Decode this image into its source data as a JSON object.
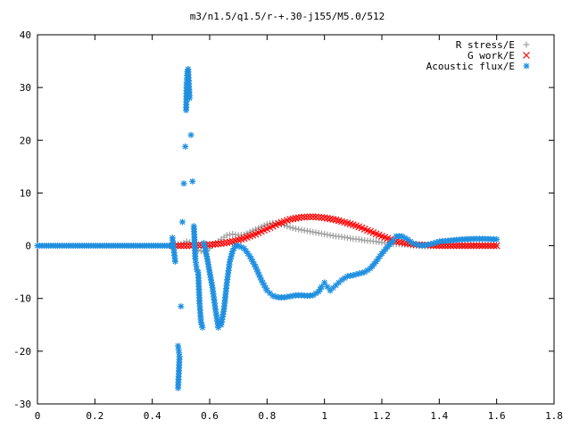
{
  "chart_data": {
    "type": "scatter",
    "title": "m3/n1.5/q1.5/r-+.30-j155/M5.0/512",
    "xlabel": "",
    "ylabel": "",
    "xlim": [
      0,
      1.8
    ],
    "ylim": [
      -30,
      40
    ],
    "xticks": [
      0,
      0.2,
      0.4,
      0.6,
      0.8,
      1,
      1.2,
      1.4,
      1.6,
      1.8
    ],
    "xtick_labels": [
      "0",
      "0.2",
      "0.4",
      "0.6",
      "0.8",
      "1",
      "1.2",
      "1.4",
      "1.6",
      "1.8"
    ],
    "yticks": [
      -30,
      -20,
      -10,
      0,
      10,
      20,
      30,
      40
    ],
    "ytick_labels": [
      "-30",
      "-20",
      "-10",
      "0",
      "10",
      "20",
      "30",
      "40"
    ],
    "grid": false,
    "legend_position": "top-right",
    "series": [
      {
        "name": "R stress/E",
        "marker": "plus",
        "color": "#a0a0a0",
        "points": [
          [
            0.47,
            0.1
          ],
          [
            0.5,
            0.3
          ],
          [
            0.52,
            0.8
          ],
          [
            0.54,
            0.5
          ],
          [
            0.56,
            -0.8
          ],
          [
            0.58,
            -1.2
          ],
          [
            0.6,
            -0.5
          ],
          [
            0.62,
            0.5
          ],
          [
            0.64,
            1.2
          ],
          [
            0.66,
            2.0
          ],
          [
            0.68,
            2.2
          ],
          [
            0.7,
            2.0
          ],
          [
            0.72,
            2.1
          ],
          [
            0.74,
            2.6
          ],
          [
            0.76,
            3.1
          ],
          [
            0.78,
            3.6
          ],
          [
            0.8,
            4.1
          ],
          [
            0.82,
            4.3
          ],
          [
            0.84,
            4.2
          ],
          [
            0.86,
            3.9
          ],
          [
            0.88,
            3.5
          ],
          [
            0.9,
            3.2
          ],
          [
            0.92,
            3.0
          ],
          [
            0.94,
            2.8
          ],
          [
            0.96,
            2.6
          ],
          [
            0.98,
            2.4
          ],
          [
            1.0,
            2.2
          ],
          [
            1.02,
            2.0
          ],
          [
            1.04,
            1.8
          ],
          [
            1.06,
            1.7
          ],
          [
            1.08,
            1.5
          ],
          [
            1.1,
            1.3
          ],
          [
            1.12,
            1.2
          ],
          [
            1.14,
            1.0
          ],
          [
            1.16,
            0.9
          ],
          [
            1.18,
            0.8
          ],
          [
            1.2,
            0.6
          ],
          [
            1.22,
            0.5
          ],
          [
            1.24,
            0.3
          ],
          [
            1.26,
            0.3
          ],
          [
            1.28,
            0.2
          ],
          [
            1.3,
            0.1
          ],
          [
            1.32,
            0.0
          ],
          [
            1.34,
            -0.1
          ],
          [
            1.36,
            -0.1
          ],
          [
            1.38,
            0.0
          ],
          [
            1.4,
            0.1
          ],
          [
            1.44,
            0.1
          ],
          [
            1.48,
            0.05
          ],
          [
            1.52,
            0.05
          ],
          [
            1.56,
            0.0
          ],
          [
            1.6,
            0.0
          ]
        ]
      },
      {
        "name": "G work/E",
        "marker": "cross",
        "color": "#ff0000",
        "points": [
          [
            0.47,
            0.0
          ],
          [
            0.52,
            0.0
          ],
          [
            0.56,
            0.1
          ],
          [
            0.6,
            0.2
          ],
          [
            0.64,
            0.4
          ],
          [
            0.68,
            0.8
          ],
          [
            0.72,
            1.4
          ],
          [
            0.76,
            2.2
          ],
          [
            0.8,
            3.2
          ],
          [
            0.84,
            4.2
          ],
          [
            0.88,
            5.0
          ],
          [
            0.92,
            5.4
          ],
          [
            0.96,
            5.5
          ],
          [
            1.0,
            5.3
          ],
          [
            1.04,
            4.9
          ],
          [
            1.08,
            4.3
          ],
          [
            1.12,
            3.6
          ],
          [
            1.16,
            2.7
          ],
          [
            1.2,
            1.8
          ],
          [
            1.24,
            1.0
          ],
          [
            1.28,
            0.5
          ],
          [
            1.32,
            0.2
          ],
          [
            1.36,
            0.1
          ],
          [
            1.4,
            0.0
          ],
          [
            1.44,
            0.0
          ],
          [
            1.48,
            0.0
          ],
          [
            1.52,
            0.0
          ],
          [
            1.56,
            0.0
          ],
          [
            1.6,
            0.0
          ]
        ]
      },
      {
        "name": "Acoustic flux/E",
        "marker": "star",
        "color": "#1f8fe0",
        "points": [
          [
            0.47,
            1.5
          ],
          [
            0.48,
            -3.0
          ],
          [
            0.49,
            -19.0
          ],
          [
            0.495,
            -21.0
          ],
          [
            0.49,
            -27.0
          ],
          [
            0.5,
            -11.5
          ],
          [
            0.505,
            4.5
          ],
          [
            0.51,
            11.8
          ],
          [
            0.515,
            18.8
          ],
          [
            0.518,
            25.7
          ],
          [
            0.52,
            31.0
          ],
          [
            0.522,
            33.0
          ],
          [
            0.525,
            33.5
          ],
          [
            0.53,
            28.0
          ],
          [
            0.535,
            21.0
          ],
          [
            0.54,
            12.2
          ],
          [
            0.545,
            3.7
          ],
          [
            0.55,
            -2.5
          ],
          [
            0.555,
            -4.5
          ],
          [
            0.56,
            -5.0
          ],
          [
            0.565,
            -11.0
          ],
          [
            0.57,
            -14.5
          ],
          [
            0.575,
            -15.5
          ],
          [
            0.58,
            0.5
          ],
          [
            0.59,
            -2.0
          ],
          [
            0.6,
            -5.0
          ],
          [
            0.61,
            -8.0
          ],
          [
            0.62,
            -12.0
          ],
          [
            0.63,
            -15.5
          ],
          [
            0.64,
            -15.0
          ],
          [
            0.65,
            -12.0
          ],
          [
            0.66,
            -7.0
          ],
          [
            0.67,
            -3.0
          ],
          [
            0.68,
            -1.0
          ],
          [
            0.69,
            0.0
          ],
          [
            0.7,
            0.0
          ],
          [
            0.72,
            -0.5
          ],
          [
            0.74,
            -2.0
          ],
          [
            0.76,
            -4.0
          ],
          [
            0.78,
            -6.5
          ],
          [
            0.8,
            -8.5
          ],
          [
            0.82,
            -9.5
          ],
          [
            0.84,
            -9.8
          ],
          [
            0.86,
            -9.8
          ],
          [
            0.88,
            -9.6
          ],
          [
            0.9,
            -9.4
          ],
          [
            0.92,
            -9.4
          ],
          [
            0.94,
            -9.5
          ],
          [
            0.96,
            -9.4
          ],
          [
            0.98,
            -8.7
          ],
          [
            0.99,
            -7.8
          ],
          [
            1.0,
            -7.0
          ],
          [
            1.01,
            -7.8
          ],
          [
            1.02,
            -8.5
          ],
          [
            1.04,
            -7.5
          ],
          [
            1.06,
            -6.5
          ],
          [
            1.08,
            -5.8
          ],
          [
            1.1,
            -5.6
          ],
          [
            1.12,
            -5.3
          ],
          [
            1.14,
            -5.0
          ],
          [
            1.16,
            -4.3
          ],
          [
            1.18,
            -3.0
          ],
          [
            1.2,
            -1.5
          ],
          [
            1.22,
            -0.2
          ],
          [
            1.24,
            1.0
          ],
          [
            1.25,
            1.8
          ],
          [
            1.27,
            1.8
          ],
          [
            1.29,
            1.2
          ],
          [
            1.31,
            0.4
          ],
          [
            1.34,
            0.0
          ],
          [
            1.37,
            0.3
          ],
          [
            1.4,
            0.8
          ],
          [
            1.44,
            1.0
          ],
          [
            1.48,
            1.2
          ],
          [
            1.52,
            1.3
          ],
          [
            1.56,
            1.3
          ],
          [
            1.6,
            1.2
          ]
        ],
        "zero_line": {
          "from": 0.0,
          "to": 0.47,
          "value": 0.0
        }
      }
    ]
  }
}
